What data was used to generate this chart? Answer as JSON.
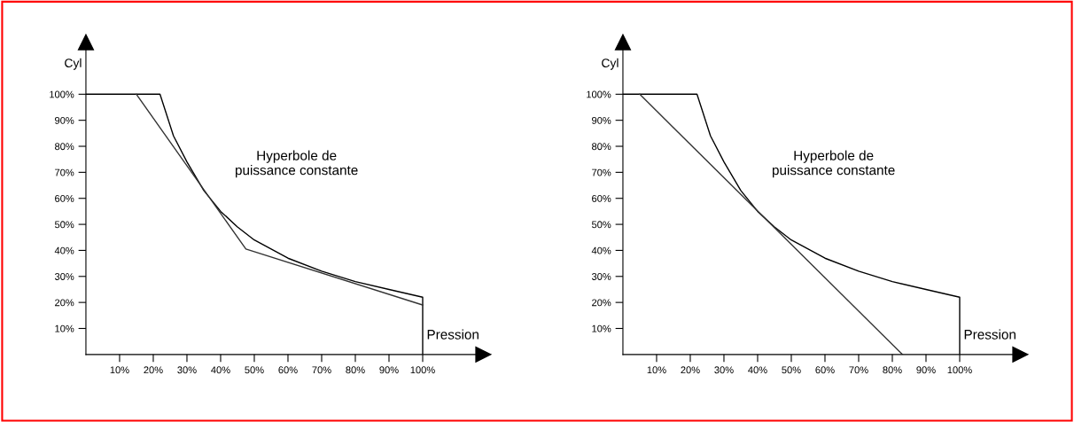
{
  "chart_data": [
    {
      "type": "line",
      "xlabel": "Pression",
      "ylabel": "Cyl",
      "xlim": [
        0,
        118
      ],
      "ylim": [
        0,
        120
      ],
      "xticks": [
        {
          "value": 10,
          "label": "10%"
        },
        {
          "value": 20,
          "label": "20%"
        },
        {
          "value": 30,
          "label": "30%"
        },
        {
          "value": 40,
          "label": "40%"
        },
        {
          "value": 50,
          "label": "50%"
        },
        {
          "value": 60,
          "label": "60%"
        },
        {
          "value": 70,
          "label": "70%"
        },
        {
          "value": 80,
          "label": "80%"
        },
        {
          "value": 90,
          "label": "90%"
        },
        {
          "value": 100,
          "label": "100%"
        }
      ],
      "yticks": [
        {
          "value": 10,
          "label": "10%"
        },
        {
          "value": 20,
          "label": "20%"
        },
        {
          "value": 30,
          "label": "30%"
        },
        {
          "value": 40,
          "label": "40%"
        },
        {
          "value": 50,
          "label": "50%"
        },
        {
          "value": 60,
          "label": "60%"
        },
        {
          "value": 70,
          "label": "70%"
        },
        {
          "value": 80,
          "label": "80%"
        },
        {
          "value": 90,
          "label": "90%"
        },
        {
          "value": 100,
          "label": "100%"
        }
      ],
      "annotations": [
        "Hyperbole de\npuissance constante"
      ],
      "grid": false,
      "legend": false,
      "marker": "none",
      "line_style": "solid",
      "series": [
        {
          "color": "#000000",
          "x": [
            0,
            22,
            26,
            30,
            35,
            40,
            45,
            50,
            60,
            70,
            80,
            90,
            100,
            100
          ],
          "values": [
            100,
            100,
            84,
            74,
            63,
            55,
            49,
            44,
            37,
            32,
            28,
            25,
            22,
            0
          ]
        },
        {
          "color": "#333333",
          "x": [
            15,
            47.5,
            100
          ],
          "values": [
            100,
            40.5,
            19
          ]
        }
      ]
    },
    {
      "type": "line",
      "xlabel": "Pression",
      "ylabel": "Cyl",
      "xlim": [
        0,
        118
      ],
      "ylim": [
        0,
        120
      ],
      "xticks": [
        {
          "value": 10,
          "label": "10%"
        },
        {
          "value": 20,
          "label": "20%"
        },
        {
          "value": 30,
          "label": "30%"
        },
        {
          "value": 40,
          "label": "40%"
        },
        {
          "value": 50,
          "label": "50%"
        },
        {
          "value": 60,
          "label": "60%"
        },
        {
          "value": 70,
          "label": "70%"
        },
        {
          "value": 80,
          "label": "80%"
        },
        {
          "value": 90,
          "label": "90%"
        },
        {
          "value": 100,
          "label": "100%"
        }
      ],
      "yticks": [
        {
          "value": 10,
          "label": "10%"
        },
        {
          "value": 20,
          "label": "20%"
        },
        {
          "value": 30,
          "label": "30%"
        },
        {
          "value": 40,
          "label": "40%"
        },
        {
          "value": 50,
          "label": "50%"
        },
        {
          "value": 60,
          "label": "60%"
        },
        {
          "value": 70,
          "label": "70%"
        },
        {
          "value": 80,
          "label": "80%"
        },
        {
          "value": 90,
          "label": "90%"
        },
        {
          "value": 100,
          "label": "100%"
        }
      ],
      "annotations": [
        "Hyperbole de\npuissance constante"
      ],
      "grid": false,
      "legend": false,
      "marker": "none",
      "line_style": "solid",
      "series": [
        {
          "color": "#000000",
          "x": [
            0,
            22,
            26,
            30,
            35,
            40,
            45,
            50,
            60,
            70,
            80,
            90,
            100,
            100
          ],
          "values": [
            100,
            100,
            84,
            74,
            63,
            55,
            49,
            44,
            37,
            32,
            28,
            25,
            22,
            0
          ]
        },
        {
          "color": "#333333",
          "x": [
            5,
            83
          ],
          "values": [
            100,
            0
          ]
        }
      ]
    }
  ]
}
